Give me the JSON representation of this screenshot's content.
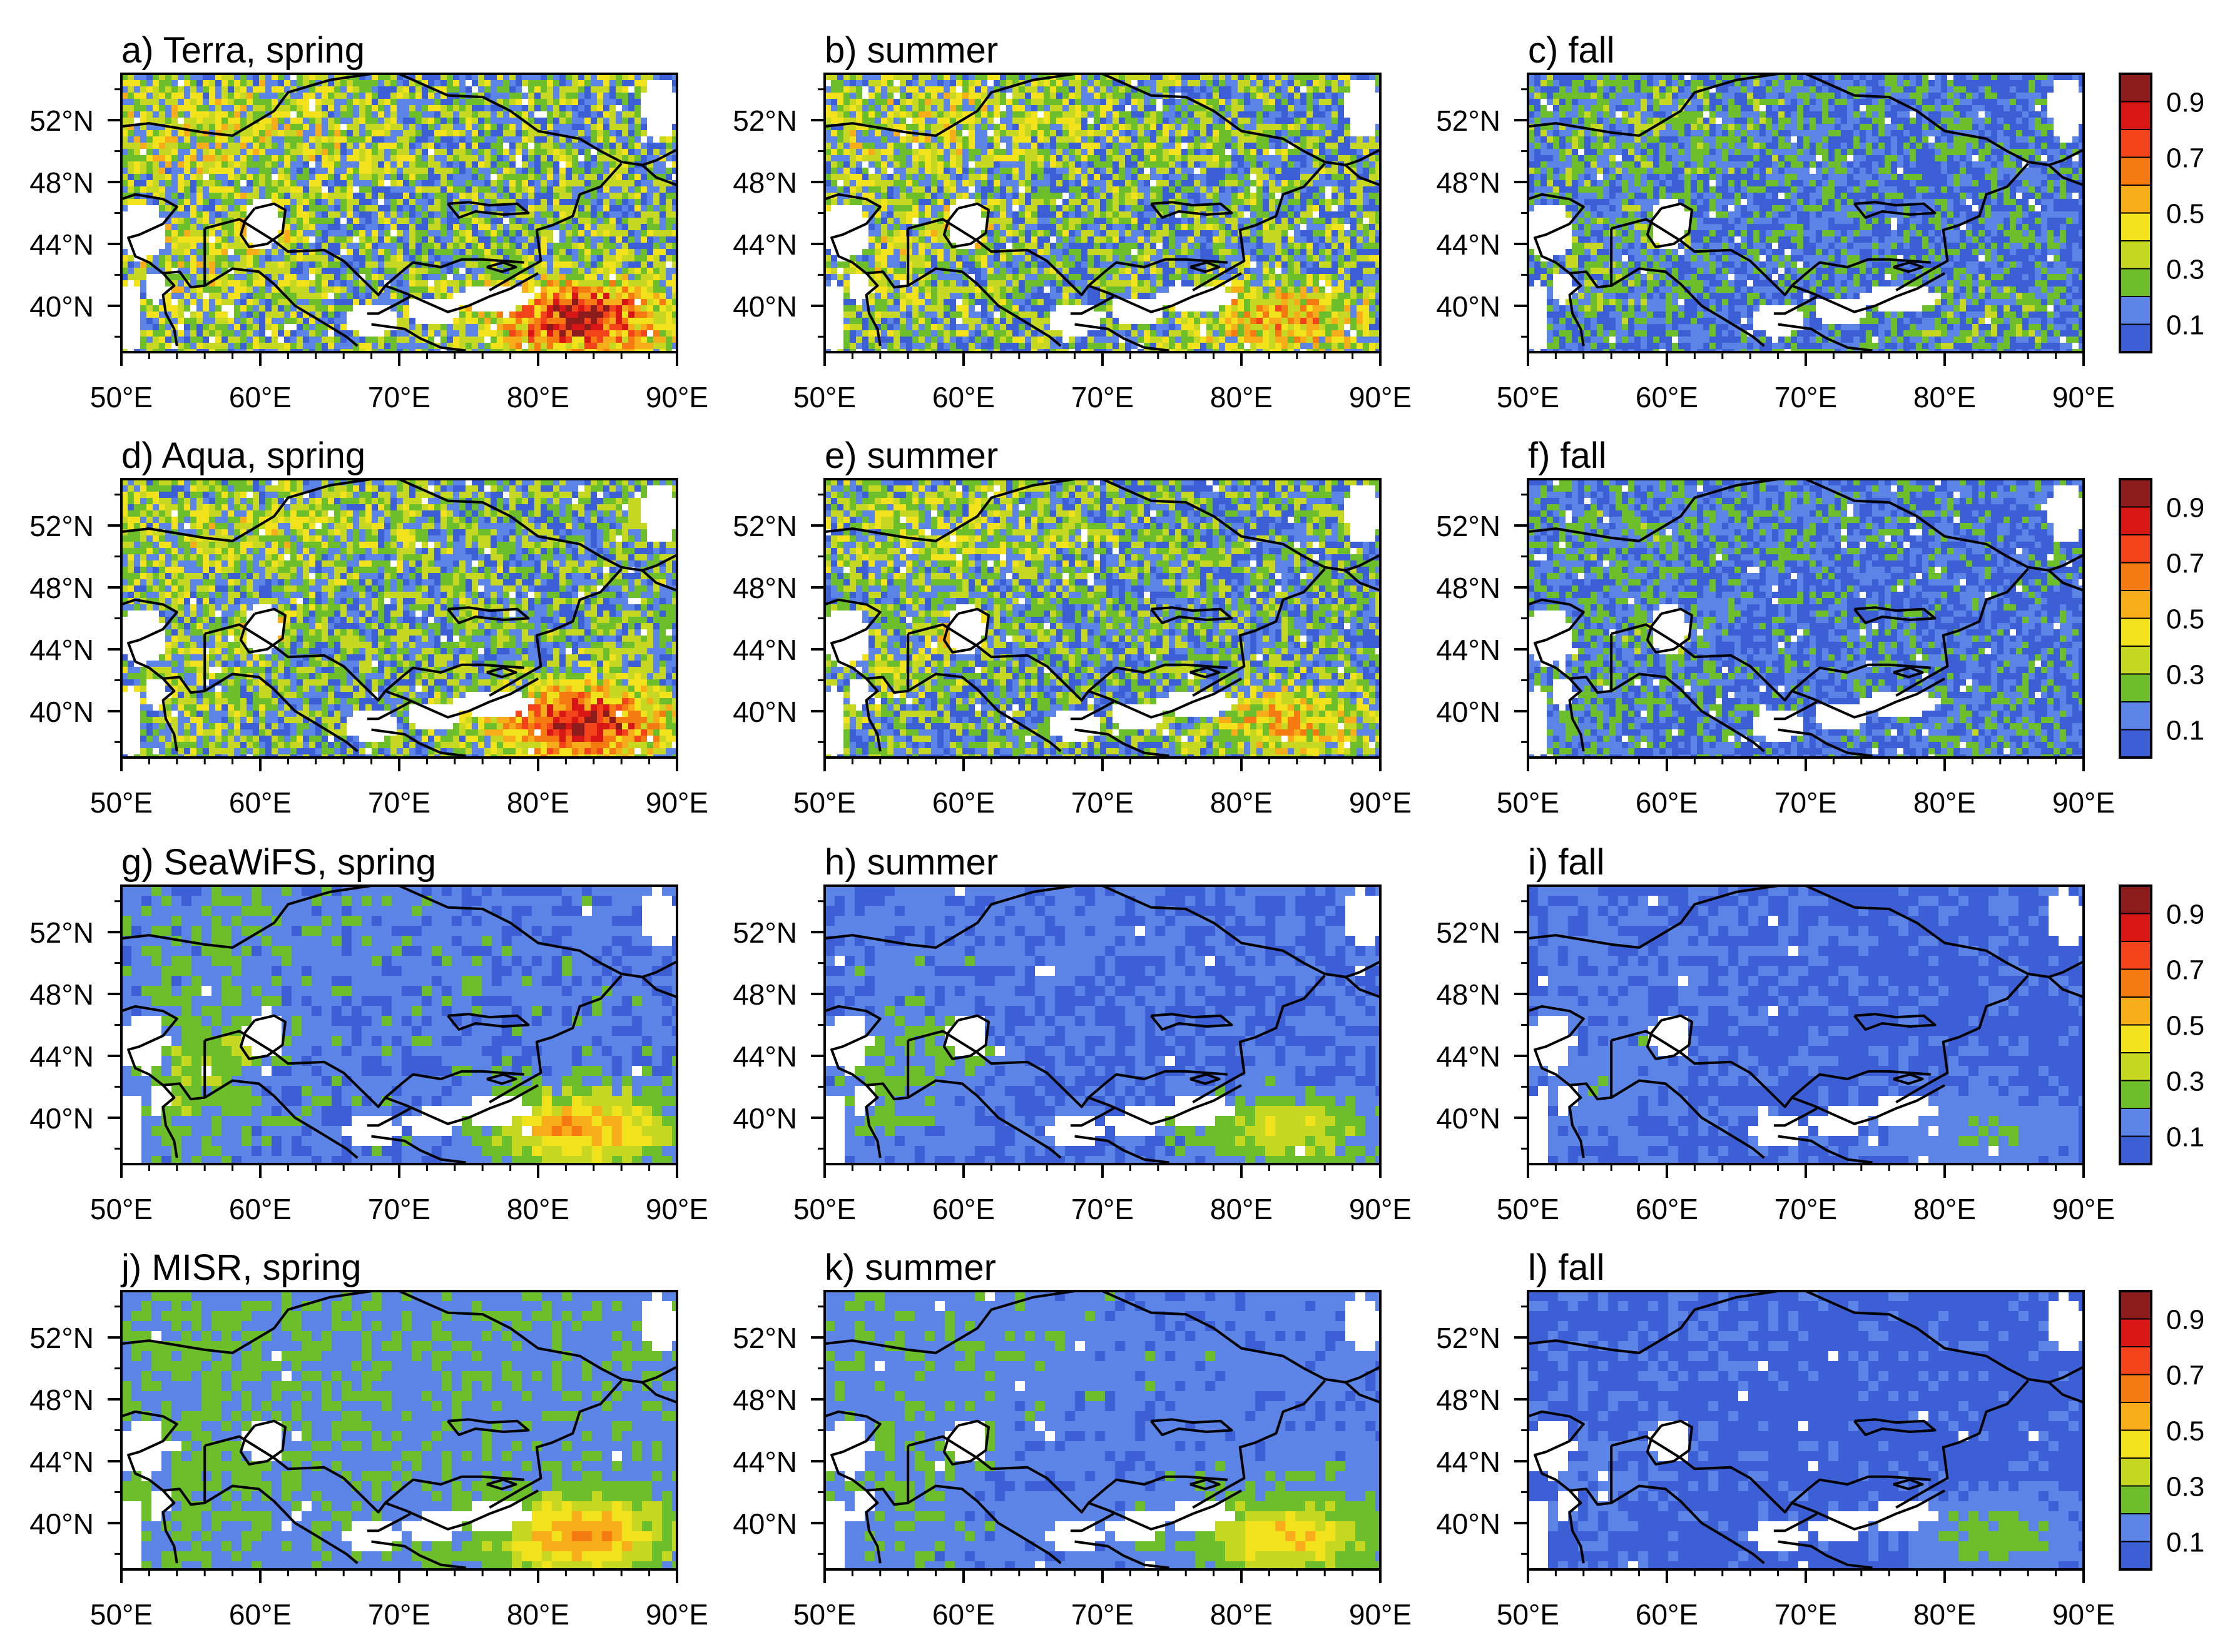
{
  "figure": {
    "colorbar": {
      "ticks": [
        "0.9",
        "0.7",
        "0.5",
        "0.3",
        "0.1"
      ],
      "levels": [
        0.0,
        0.1,
        0.2,
        0.3,
        0.4,
        0.5,
        0.6,
        0.7,
        0.8,
        0.9,
        1.0
      ],
      "colors": [
        "#3c5fd6",
        "#5b84e6",
        "#6cbf2a",
        "#c6d822",
        "#f2e21c",
        "#f7ac1a",
        "#f57a12",
        "#f2431a",
        "#d91616",
        "#8c1c1c"
      ]
    },
    "lon_ticks": [
      "50°E",
      "60°E",
      "70°E",
      "80°E",
      "90°E"
    ],
    "lat_ticks": [
      "52°N",
      "48°N",
      "44°N",
      "40°N"
    ],
    "missing_color": "#ffffff",
    "coast_color": "#000000"
  },
  "chart_data": [
    {
      "type": "heatmap",
      "title": "a) Terra, spring",
      "xlim": [
        50,
        90
      ],
      "ylim": [
        37,
        55
      ],
      "xlabel": "",
      "ylabel": "",
      "pattern": {
        "base": 0.22,
        "dust": 0.85,
        "noise": 0.22,
        "caspian": 0.35,
        "aral": 0.55
      }
    },
    {
      "type": "heatmap",
      "title": "b) summer",
      "xlim": [
        50,
        90
      ],
      "ylim": [
        37,
        55
      ],
      "xlabel": "",
      "ylabel": "",
      "pattern": {
        "base": 0.2,
        "dust": 0.55,
        "noise": 0.22,
        "caspian": 0.3,
        "aral": 0.5
      }
    },
    {
      "type": "heatmap",
      "title": "c) fall",
      "xlim": [
        50,
        90
      ],
      "ylim": [
        37,
        55
      ],
      "xlabel": "",
      "ylabel": "",
      "pattern": {
        "base": 0.12,
        "dust": 0.2,
        "noise": 0.16,
        "caspian": 0.2,
        "aral": 0.35
      }
    },
    {
      "type": "heatmap",
      "title": "d) Aqua, spring",
      "xlim": [
        50,
        90
      ],
      "ylim": [
        37,
        55
      ],
      "xlabel": "",
      "ylabel": "",
      "pattern": {
        "base": 0.2,
        "dust": 0.85,
        "noise": 0.2,
        "caspian": 0.3,
        "aral": 0.5
      }
    },
    {
      "type": "heatmap",
      "title": "e) summer",
      "xlim": [
        50,
        90
      ],
      "ylim": [
        37,
        55
      ],
      "xlabel": "",
      "ylabel": "",
      "pattern": {
        "base": 0.18,
        "dust": 0.5,
        "noise": 0.2,
        "caspian": 0.28,
        "aral": 0.45
      }
    },
    {
      "type": "heatmap",
      "title": "f) fall",
      "xlim": [
        50,
        90
      ],
      "ylim": [
        37,
        55
      ],
      "xlabel": "",
      "ylabel": "",
      "pattern": {
        "base": 0.1,
        "dust": 0.18,
        "noise": 0.14,
        "caspian": 0.18,
        "aral": 0.3
      }
    },
    {
      "type": "heatmap",
      "title": "g) SeaWiFS, spring",
      "xlim": [
        50,
        90
      ],
      "ylim": [
        37,
        55
      ],
      "xlabel": "",
      "ylabel": "",
      "pattern": {
        "base": 0.13,
        "dust": 0.58,
        "noise": 0.08,
        "caspian": 0.28,
        "aral": 0.4
      }
    },
    {
      "type": "heatmap",
      "title": "h) summer",
      "xlim": [
        50,
        90
      ],
      "ylim": [
        37,
        55
      ],
      "xlabel": "",
      "ylabel": "",
      "pattern": {
        "base": 0.1,
        "dust": 0.4,
        "noise": 0.07,
        "caspian": 0.22,
        "aral": 0.3
      }
    },
    {
      "type": "heatmap",
      "title": "i) fall",
      "xlim": [
        50,
        90
      ],
      "ylim": [
        37,
        55
      ],
      "xlabel": "",
      "ylabel": "",
      "pattern": {
        "base": 0.08,
        "dust": 0.2,
        "noise": 0.05,
        "caspian": 0.16,
        "aral": 0.2
      }
    },
    {
      "type": "heatmap",
      "title": "j) MISR, spring",
      "xlim": [
        50,
        90
      ],
      "ylim": [
        37,
        55
      ],
      "xlabel": "",
      "ylabel": "",
      "pattern": {
        "base": 0.17,
        "dust": 0.58,
        "noise": 0.07,
        "caspian": 0.22,
        "aral": 0.25
      }
    },
    {
      "type": "heatmap",
      "title": "k) summer",
      "xlim": [
        50,
        90
      ],
      "ylim": [
        37,
        55
      ],
      "xlabel": "",
      "ylabel": "",
      "pattern": {
        "base": 0.14,
        "dust": 0.5,
        "noise": 0.06,
        "caspian": 0.2,
        "aral": 0.25
      }
    },
    {
      "type": "heatmap",
      "title": "l) fall",
      "xlim": [
        50,
        90
      ],
      "ylim": [
        37,
        55
      ],
      "xlabel": "",
      "ylabel": "",
      "pattern": {
        "base": 0.07,
        "dust": 0.25,
        "noise": 0.04,
        "caspian": 0.12,
        "aral": 0.15
      }
    }
  ]
}
